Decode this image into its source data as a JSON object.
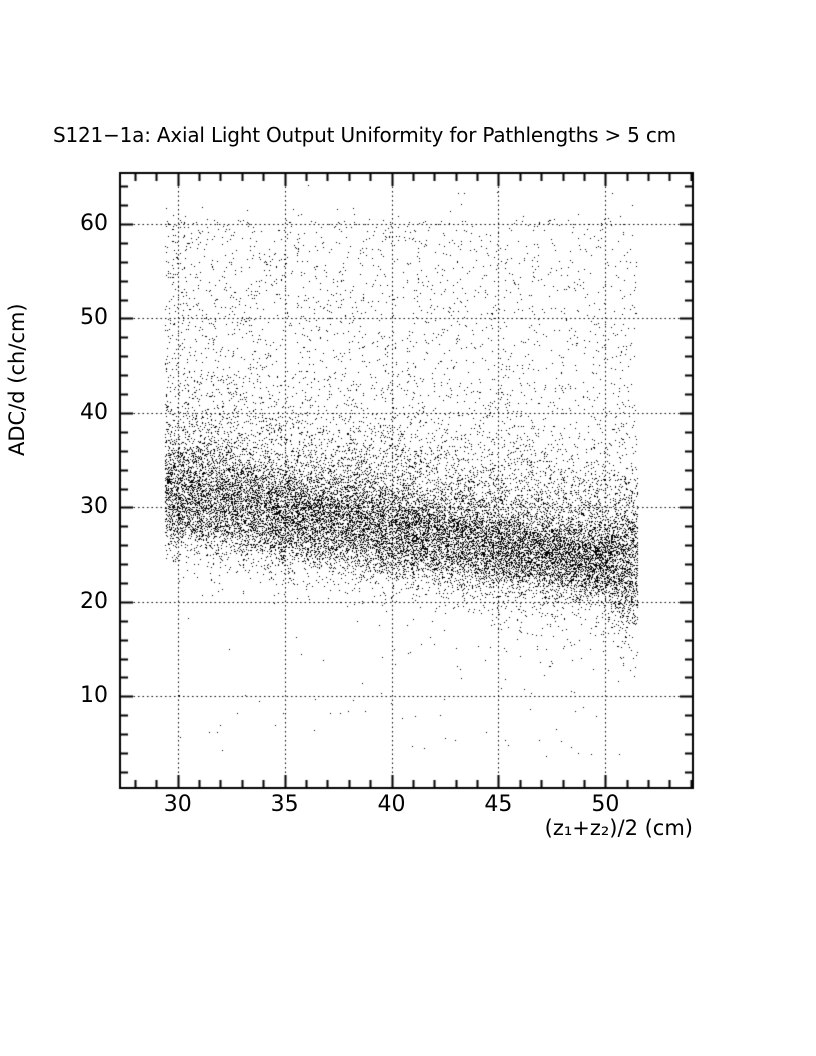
{
  "page": {
    "background_color": "#ffffff",
    "ink_color": "#000000"
  },
  "chart_data": {
    "type": "scatter",
    "title": "S121−1a: Axial Light Output Uniformity for Pathlengths > 5 cm",
    "xlabel": "(z₁+z₂)/2 (cm)",
    "ylabel": "ADC/d (ch/cm)",
    "xlim": [
      27.3,
      54.1
    ],
    "ylim": [
      0.3,
      65.4
    ],
    "x_major_ticks": [
      30,
      35,
      40,
      45,
      50
    ],
    "x_major_tick_labels": [
      "30",
      "35",
      "40",
      "45",
      "50"
    ],
    "y_major_ticks": [
      10,
      20,
      30,
      40,
      50,
      60
    ],
    "y_major_tick_labels": [
      "10",
      "20",
      "30",
      "40",
      "50",
      "60"
    ],
    "x_minor_tick_step": 1,
    "y_minor_tick_step": 2,
    "grid": "dotted lines at every major tick, both axes",
    "marker": "1px black dot",
    "marker_color": "#000000",
    "x_data_range": [
      29.4,
      51.5
    ],
    "scatter_model": {
      "seed": 20121,
      "description": "dense horizontal band of hits whose mean ADC/d drifts down from ~31 ch/cm at z=30 to ~24 ch/cm at z=50, with a diffuse halo above up to ~60, a sparse lower tail (mostly at larger z), a vertical smear at the right data edge, and a few outliers above 60 and below 15",
      "band": {
        "n": 13500,
        "center_at_xmin": 30.8,
        "slope_per_cm": -0.325,
        "sigma_at_xmin": 2.7,
        "sigma_slope": -0.04,
        "right_smear_x": 50.4,
        "right_smear_factor": 1.8
      },
      "shoulder": {
        "n": 5200,
        "offset": 1.0,
        "half_normal_sigma": 5.5,
        "ymax": 62.5
      },
      "halo": {
        "n": 2600,
        "offset": 4.0,
        "ymax": 60.5,
        "x_bias_pow": 1.2
      },
      "lower_tail": {
        "n": 1100,
        "offset": -1.5,
        "half_normal_sigma": 3.5,
        "ymin": 3.0,
        "x_bias_pow": 0.55
      },
      "deep_outliers": {
        "n": 80,
        "y_range": [
          3.5,
          16.0
        ],
        "x_bias_pow": 0.6
      },
      "top_outliers": {
        "n": 45,
        "y_base": 60.0,
        "exp_mean": 1.3,
        "ymax": 64.5
      }
    }
  }
}
